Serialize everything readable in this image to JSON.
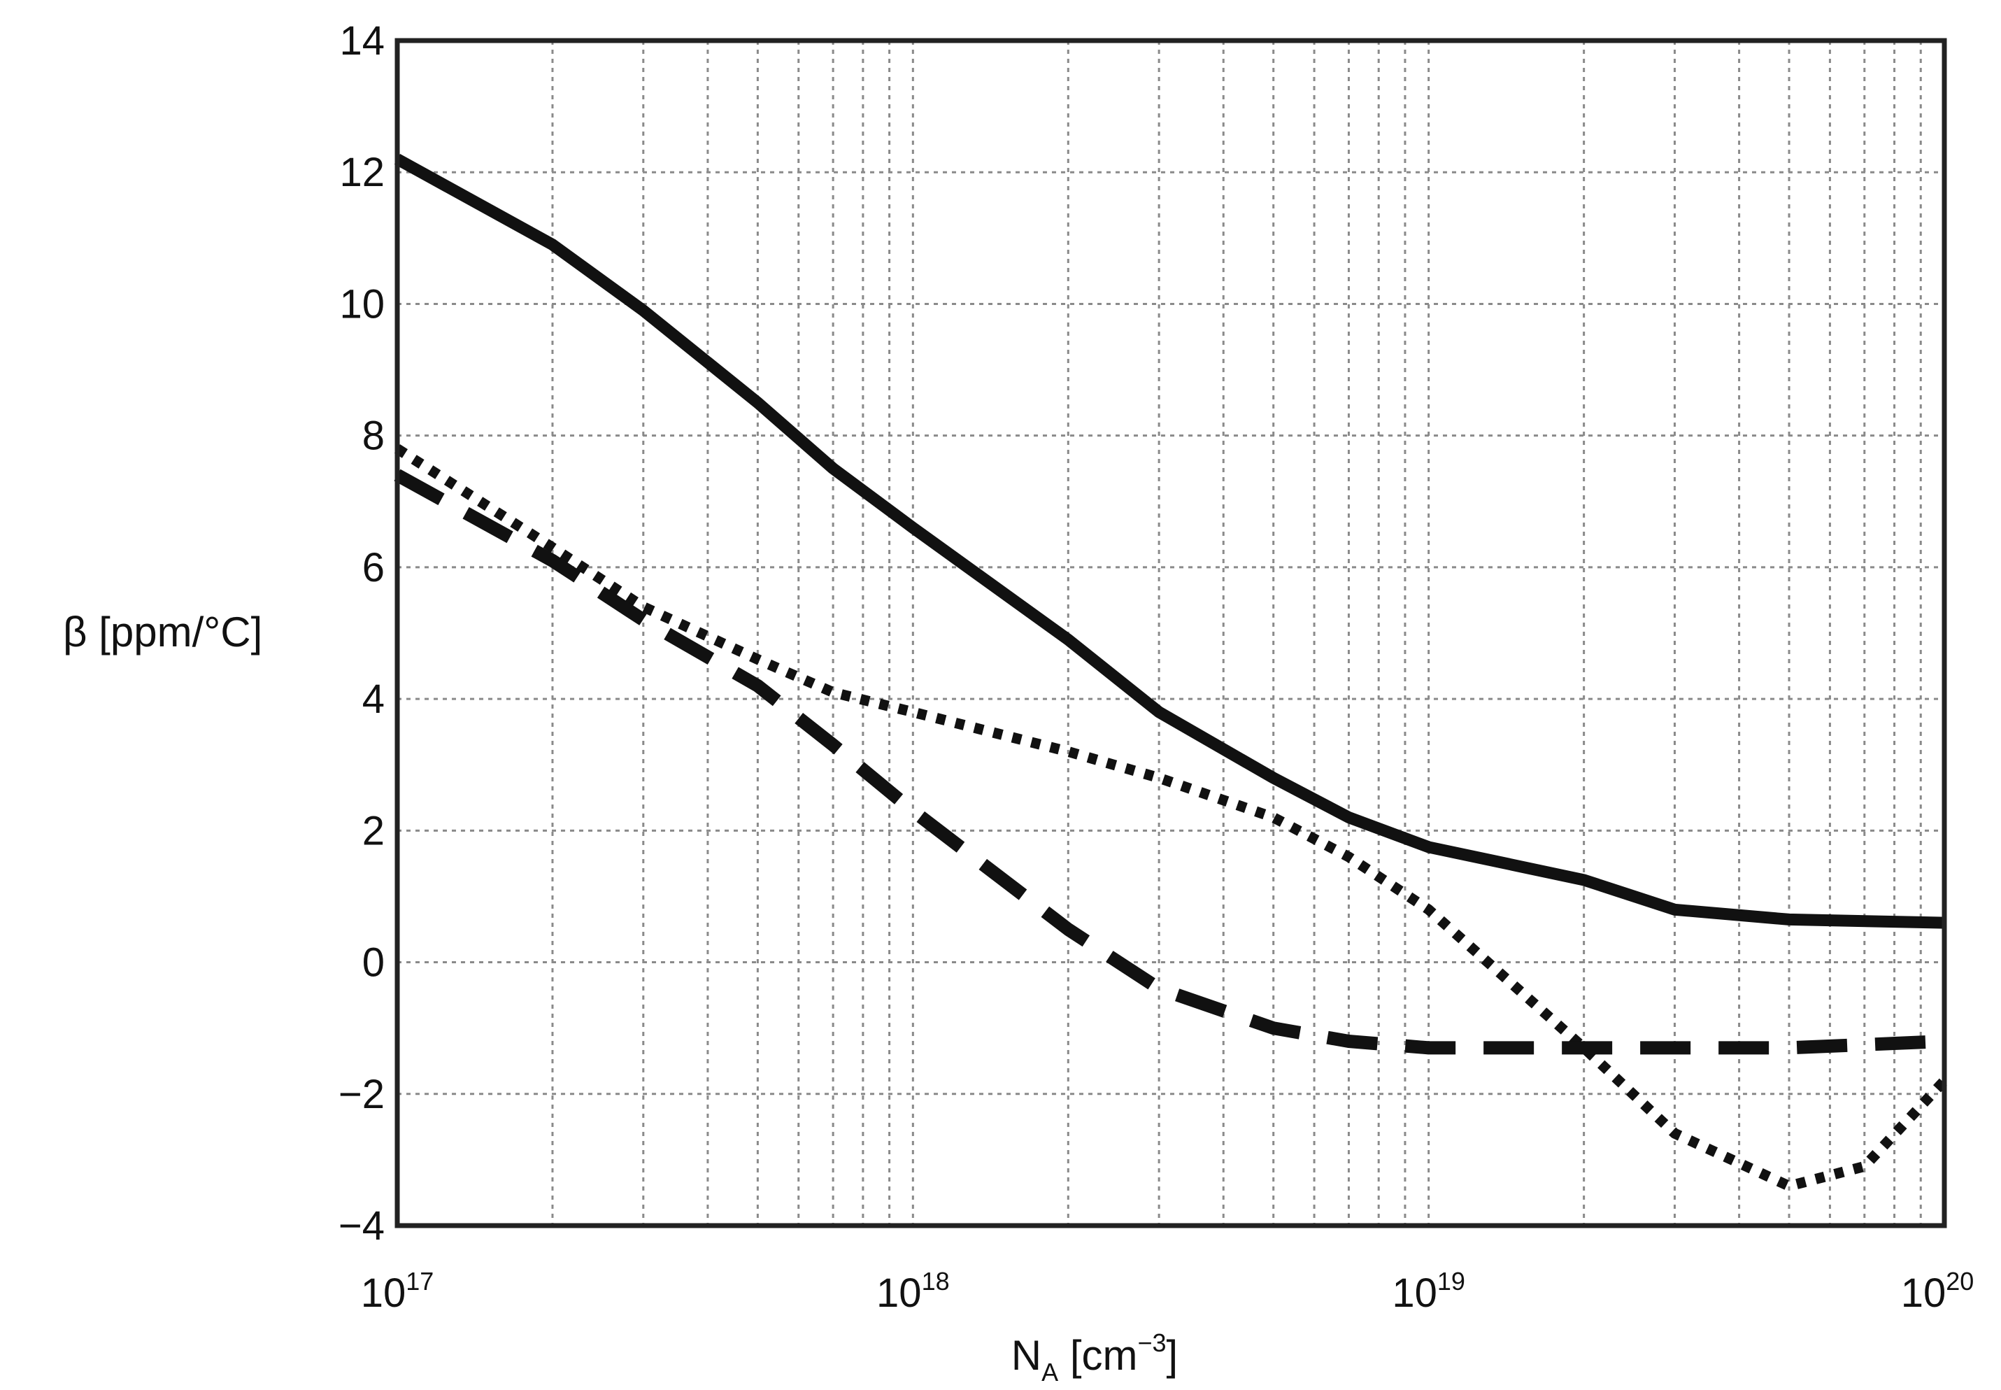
{
  "chart_data": {
    "type": "line",
    "title": "",
    "xlabel": "N",
    "xlabel_sub": "A",
    "xlabel_unit_open": " [cm",
    "xlabel_unit_sup": "−3",
    "xlabel_unit_close": "]",
    "ylabel": "β [ppm/°C]",
    "x_scale": "log",
    "xlim": [
      1e+17,
      1e+20
    ],
    "ylim": [
      -4,
      14
    ],
    "grid": true,
    "legend": "none",
    "x_ticks": [
      {
        "base": "10",
        "exp": "17",
        "value": 1e+17
      },
      {
        "base": "10",
        "exp": "18",
        "value": 1e+18
      },
      {
        "base": "10",
        "exp": "19",
        "value": 1e+19
      },
      {
        "base": "10",
        "exp": "20",
        "value": 1e+20
      }
    ],
    "y_ticks": [
      {
        "label": "14",
        "value": 14
      },
      {
        "label": "12",
        "value": 12
      },
      {
        "label": "10",
        "value": 10
      },
      {
        "label": "8",
        "value": 8
      },
      {
        "label": "6",
        "value": 6
      },
      {
        "label": "4",
        "value": 4
      },
      {
        "label": "2",
        "value": 2
      },
      {
        "label": "0",
        "value": 0
      },
      {
        "label": "−2",
        "value": -2
      },
      {
        "label": "−4",
        "value": -4
      }
    ],
    "series": [
      {
        "style": "solid",
        "color": "#111111",
        "points": [
          [
            1e+17,
            12.2
          ],
          [
            2e+17,
            10.9
          ],
          [
            3e+17,
            9.9
          ],
          [
            5e+17,
            8.5
          ],
          [
            7e+17,
            7.5
          ],
          [
            1e+18,
            6.6
          ],
          [
            2e+18,
            4.9
          ],
          [
            3e+18,
            3.8
          ],
          [
            5e+18,
            2.8
          ],
          [
            7e+18,
            2.2
          ],
          [
            1e+19,
            1.75
          ],
          [
            2e+19,
            1.25
          ],
          [
            3e+19,
            0.8
          ],
          [
            5e+19,
            0.65
          ],
          [
            1e+20,
            0.6
          ]
        ]
      },
      {
        "style": "dotted",
        "color": "#111111",
        "points": [
          [
            1e+17,
            7.8
          ],
          [
            2e+17,
            6.3
          ],
          [
            3e+17,
            5.4
          ],
          [
            5e+17,
            4.6
          ],
          [
            7e+17,
            4.1
          ],
          [
            1e+18,
            3.8
          ],
          [
            2e+18,
            3.2
          ],
          [
            3e+18,
            2.8
          ],
          [
            5e+18,
            2.2
          ],
          [
            7e+18,
            1.6
          ],
          [
            1e+19,
            0.8
          ],
          [
            2e+19,
            -1.3
          ],
          [
            3e+19,
            -2.6
          ],
          [
            5e+19,
            -3.4
          ],
          [
            7e+19,
            -3.1
          ],
          [
            1e+20,
            -1.8
          ]
        ]
      },
      {
        "style": "dashed",
        "color": "#111111",
        "points": [
          [
            1e+17,
            7.4
          ],
          [
            2e+17,
            6.1
          ],
          [
            3e+17,
            5.2
          ],
          [
            5e+17,
            4.2
          ],
          [
            7e+17,
            3.3
          ],
          [
            1e+18,
            2.3
          ],
          [
            2e+18,
            0.5
          ],
          [
            3e+18,
            -0.4
          ],
          [
            5e+18,
            -1.0
          ],
          [
            7e+18,
            -1.2
          ],
          [
            1e+19,
            -1.3
          ],
          [
            2e+19,
            -1.3
          ],
          [
            5e+19,
            -1.3
          ],
          [
            1e+20,
            -1.2
          ]
        ]
      }
    ]
  }
}
